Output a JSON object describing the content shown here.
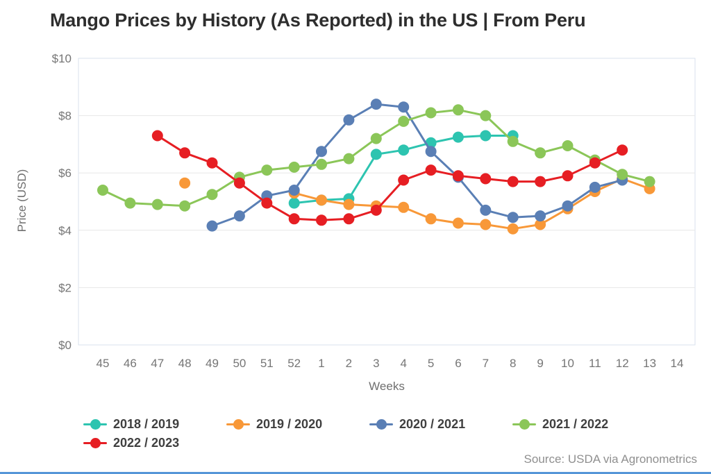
{
  "title": "Mango Prices by History (As Reported) in the US | From Peru",
  "source": "Source: USDA via Agronometrics",
  "chart_data": {
    "type": "line",
    "title": "Mango Prices by History (As Reported) in the US | From Peru",
    "xlabel": "Weeks",
    "ylabel": "Price (USD)",
    "ylim": [
      0,
      10
    ],
    "grid": true,
    "legend_position": "bottom-left",
    "categories": [
      "45",
      "46",
      "47",
      "48",
      "49",
      "50",
      "51",
      "52",
      "1",
      "2",
      "3",
      "4",
      "5",
      "6",
      "7",
      "8",
      "9",
      "10",
      "11",
      "12",
      "13",
      "14"
    ],
    "y_ticks": [
      {
        "label": "$0",
        "value": 0
      },
      {
        "label": "$2",
        "value": 2
      },
      {
        "label": "$4",
        "value": 4
      },
      {
        "label": "$6",
        "value": 6
      },
      {
        "label": "$8",
        "value": 8
      },
      {
        "label": "$10",
        "value": 10
      }
    ],
    "series": [
      {
        "name": "2018 / 2019",
        "color": "#2dc4b0",
        "values": [
          null,
          null,
          null,
          null,
          null,
          null,
          null,
          4.95,
          5.05,
          5.1,
          6.65,
          6.8,
          7.05,
          7.25,
          7.3,
          7.3,
          null,
          null,
          null,
          null,
          null,
          null
        ]
      },
      {
        "name": "2019 / 2020",
        "color": "#f89838",
        "values": [
          null,
          null,
          null,
          5.65,
          null,
          null,
          null,
          5.3,
          5.05,
          4.9,
          4.85,
          4.8,
          4.4,
          4.25,
          4.2,
          4.05,
          4.2,
          4.75,
          5.35,
          5.8,
          5.45,
          null
        ]
      },
      {
        "name": "2020 / 2021",
        "color": "#5a7fb5",
        "values": [
          null,
          null,
          null,
          null,
          4.15,
          4.5,
          5.2,
          5.4,
          6.75,
          7.85,
          8.4,
          8.3,
          6.75,
          5.85,
          4.7,
          4.45,
          4.5,
          4.85,
          5.5,
          5.75,
          null,
          null
        ]
      },
      {
        "name": "2021 / 2022",
        "color": "#8bc658",
        "values": [
          5.4,
          4.95,
          4.9,
          4.85,
          5.25,
          5.85,
          6.1,
          6.2,
          6.3,
          6.5,
          7.2,
          7.8,
          8.1,
          8.2,
          8.0,
          7.1,
          6.7,
          6.95,
          6.45,
          5.95,
          5.7,
          null
        ]
      },
      {
        "name": "2022 / 2023",
        "color": "#e61e23",
        "values": [
          null,
          null,
          7.3,
          6.7,
          6.35,
          5.65,
          4.95,
          4.4,
          4.35,
          4.4,
          4.7,
          5.75,
          6.1,
          5.9,
          5.8,
          5.7,
          5.7,
          5.9,
          6.35,
          6.8,
          null,
          null
        ]
      }
    ]
  }
}
